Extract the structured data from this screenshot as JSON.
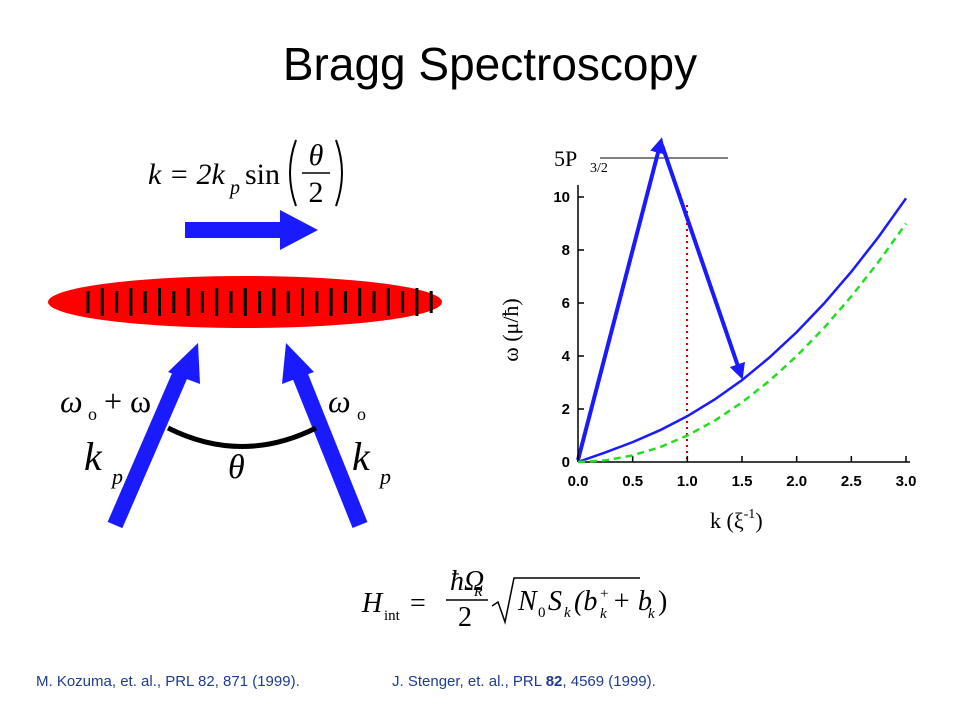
{
  "header": {
    "title": "Bragg Spectroscopy"
  },
  "top_equation": {
    "lhs": "k = 2k",
    "sub": "p",
    "func": "sin",
    "numerator": "θ",
    "denominator": "2"
  },
  "diagram": {
    "left_frequency": "ω",
    "left_frequency_sub": "o",
    "left_frequency_rest": "+ ω",
    "right_frequency": "ω",
    "right_frequency_sub": "o",
    "left_wavevector": "k",
    "left_wavevector_sub": "p",
    "right_wavevector": "k",
    "right_wavevector_sub": "p",
    "angle": "θ",
    "level": "5P",
    "level_sub": "3/2"
  },
  "bottom_equation": {
    "lhs": "H",
    "lhs_sub": "int",
    "eq": "=",
    "numerator": "ħΩ",
    "numerator_sub": "R",
    "denominator": "2",
    "root": "N",
    "root_sub": "0",
    "root_rest": "S",
    "root_rest_sub": "k",
    "paren": "(b",
    "b_sub": "k",
    "b_sup": "+",
    "plus": "+ b",
    "b2_sub": "k",
    "close": ")"
  },
  "chart_data": {
    "type": "line",
    "x_label": "k (ξ",
    "x_label_sup": "-1",
    "x_label_end": ")",
    "y_label": "ω (μ/ħ)",
    "x": [
      0,
      0.25,
      0.5,
      0.75,
      1,
      1.25,
      1.5,
      1.75,
      2,
      2.25,
      2.5,
      2.75,
      3
    ],
    "series": [
      {
        "color": "#1a1aff",
        "dashed": false,
        "values": [
          0,
          0.36,
          0.75,
          1.2,
          1.73,
          2.36,
          3.09,
          3.94,
          4.9,
          5.98,
          7.18,
          8.5,
          9.95
        ]
      },
      {
        "color": "#22dd22",
        "dashed": true,
        "values": [
          0,
          0.06,
          0.25,
          0.56,
          1,
          1.56,
          2.25,
          3.06,
          4,
          5.06,
          6.25,
          7.56,
          9
        ]
      }
    ],
    "xlim": [
      0,
      3
    ],
    "ylim": [
      0,
      10
    ],
    "xticks": [
      {
        "value": 0,
        "label": "0.0"
      },
      {
        "value": 0.5,
        "label": "0.5"
      },
      {
        "value": 1,
        "label": "1.0"
      },
      {
        "value": 1.5,
        "label": "1.5"
      },
      {
        "value": 2,
        "label": "2.0"
      },
      {
        "value": 2.5,
        "label": "2.5"
      },
      {
        "value": 3,
        "label": "3.0"
      }
    ],
    "yticks": [
      0,
      2,
      4,
      6,
      8,
      10
    ],
    "grid": false
  },
  "references": [
    {
      "text": "M. Kozuma, et. al., PRL 82, 871 (1999)."
    },
    {
      "text": "J. Stenger, et. al., PRL ",
      "bold": "82",
      "rest": ", 4569 (1999)."
    }
  ]
}
